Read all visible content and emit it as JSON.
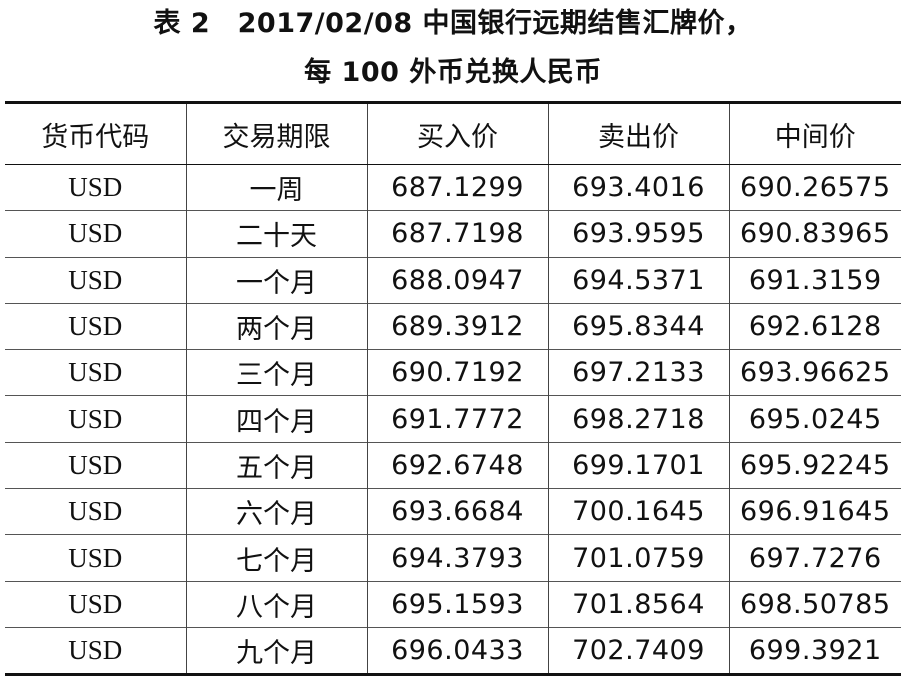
{
  "title_line1": "表 2　2017/02/08 中国银行远期结售汇牌价，",
  "title_line2": "每 100 外币兑换人民币",
  "table": {
    "headers": [
      "货币代码",
      "交易期限",
      "买入价",
      "卖出价",
      "中间价"
    ],
    "rows": [
      [
        "USD",
        "一周",
        "687.1299",
        "693.4016",
        "690.26575"
      ],
      [
        "USD",
        "二十天",
        "687.7198",
        "693.9595",
        "690.83965"
      ],
      [
        "USD",
        "一个月",
        "688.0947",
        "694.5371",
        "691.3159"
      ],
      [
        "USD",
        "两个月",
        "689.3912",
        "695.8344",
        "692.6128"
      ],
      [
        "USD",
        "三个月",
        "690.7192",
        "697.2133",
        "693.96625"
      ],
      [
        "USD",
        "四个月",
        "691.7772",
        "698.2718",
        "695.0245"
      ],
      [
        "USD",
        "五个月",
        "692.6748",
        "699.1701",
        "695.92245"
      ],
      [
        "USD",
        "六个月",
        "693.6684",
        "700.1645",
        "696.91645"
      ],
      [
        "USD",
        "七个月",
        "694.3793",
        "701.0759",
        "697.7276"
      ],
      [
        "USD",
        "八个月",
        "695.1593",
        "701.8564",
        "698.50785"
      ],
      [
        "USD",
        "九个月",
        "696.0433",
        "702.7409",
        "699.3921"
      ]
    ]
  }
}
